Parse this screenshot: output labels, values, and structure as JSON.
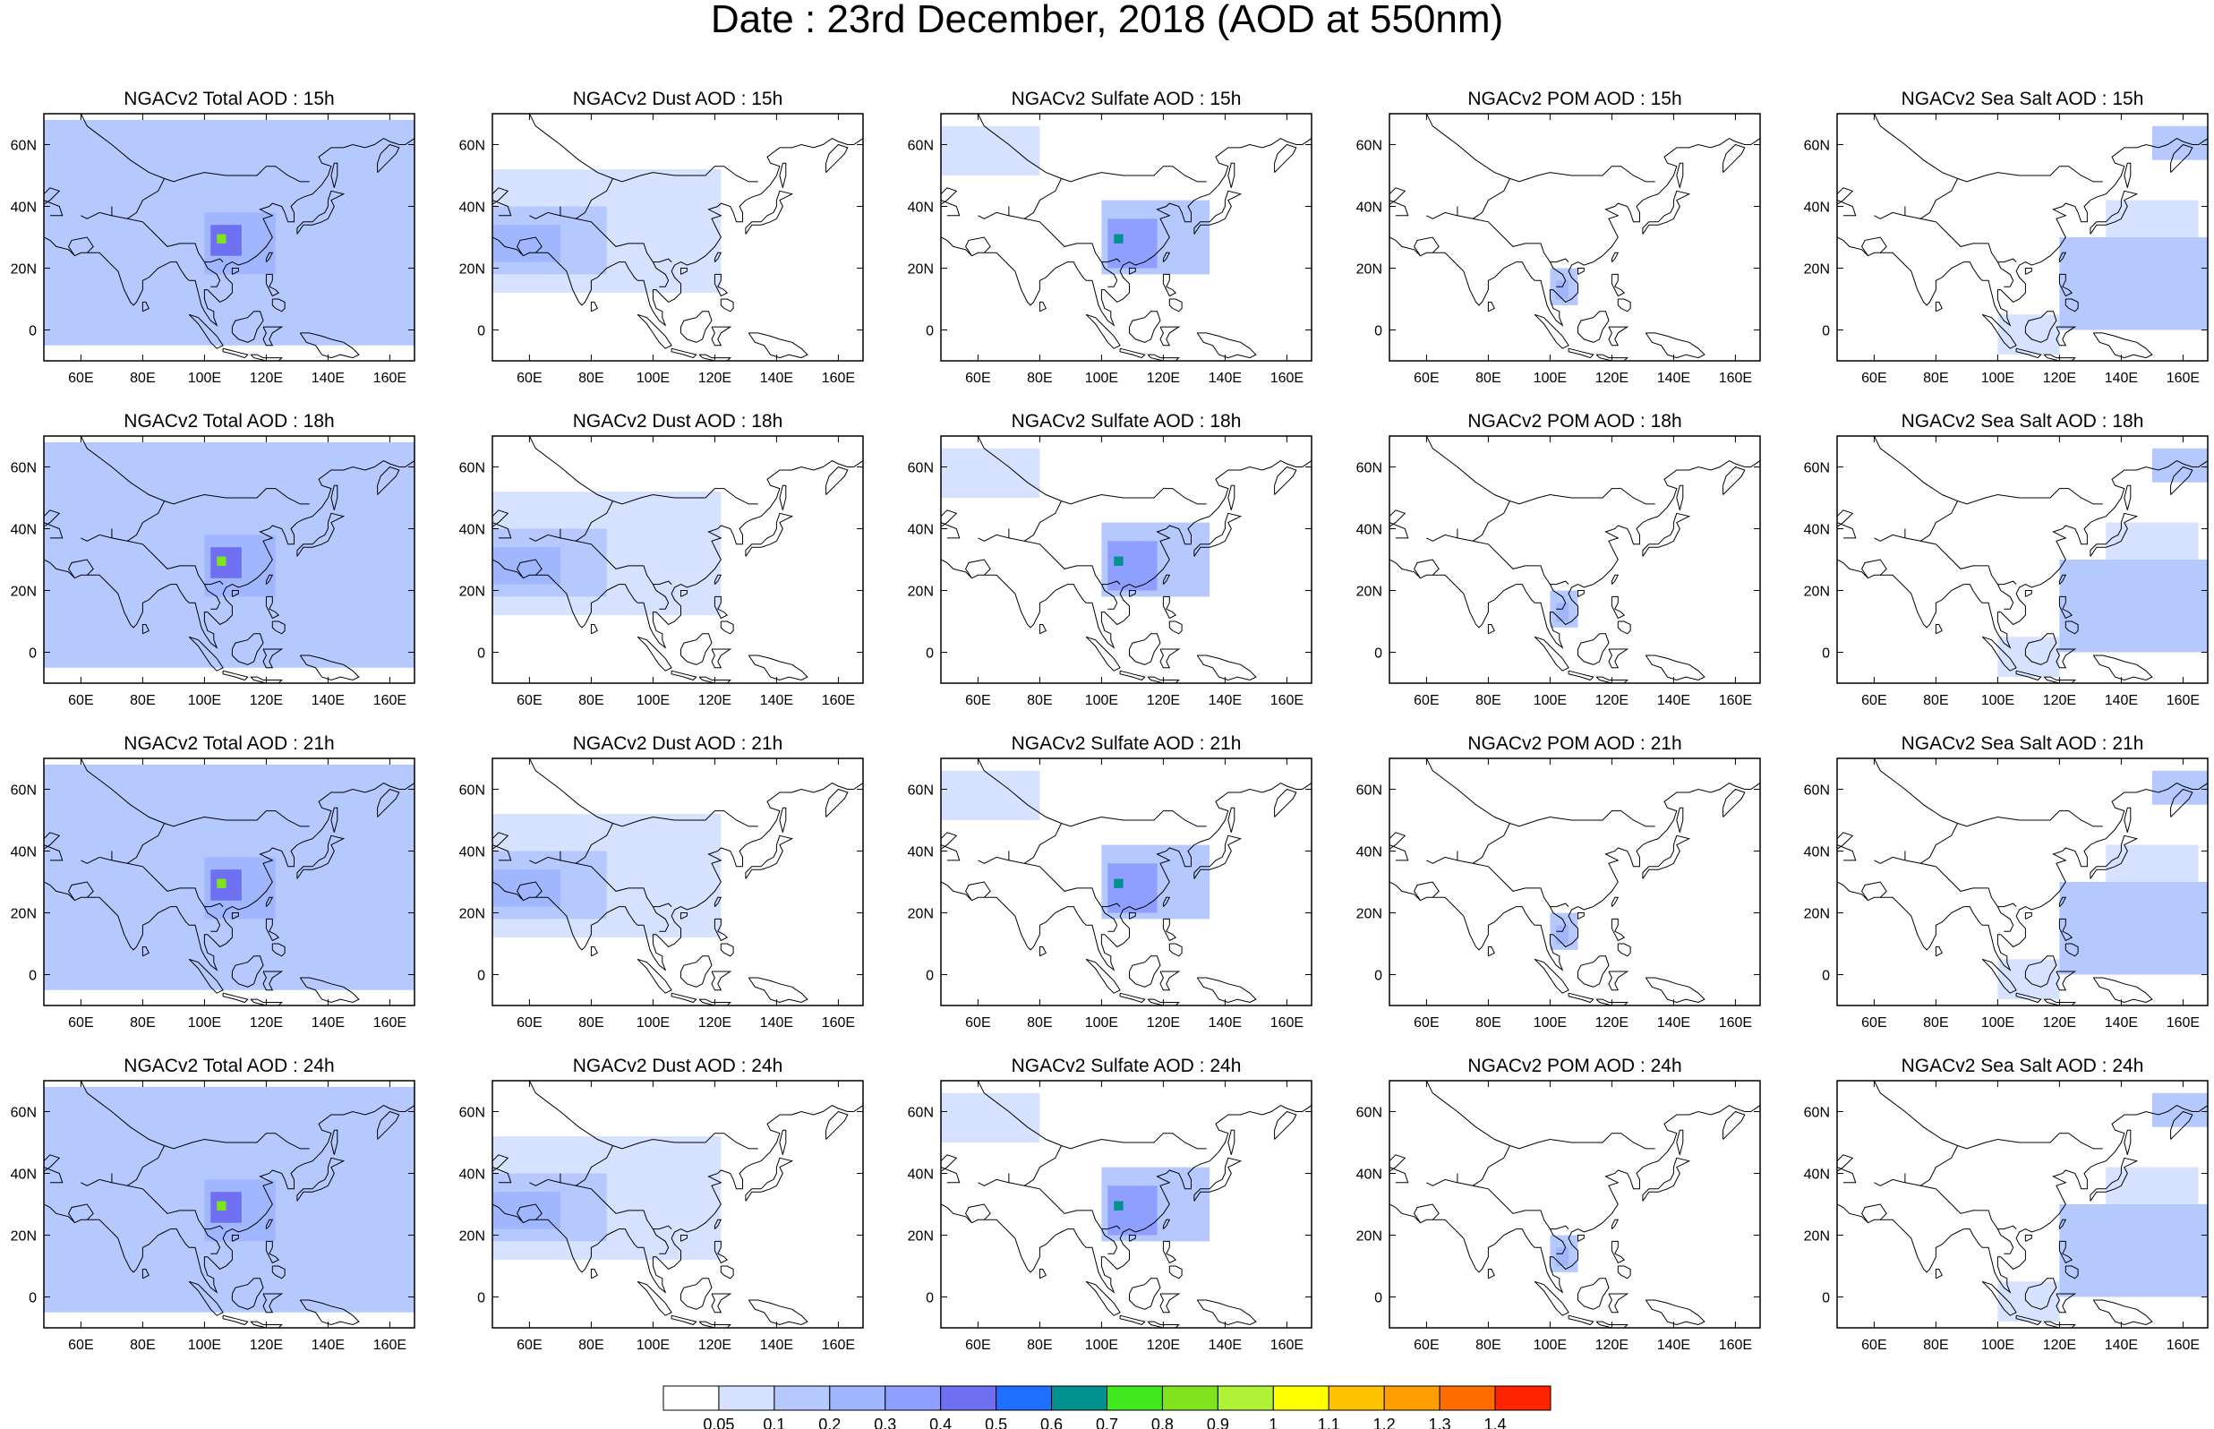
{
  "title": "Date : 23rd December, 2018 (AOD at 550nm)",
  "hours": [
    "15h",
    "18h",
    "21h",
    "24h"
  ],
  "species": [
    {
      "key": "total",
      "prefix": "NGACv2 Total AOD : "
    },
    {
      "key": "dust",
      "prefix": "NGACv2 Dust AOD : "
    },
    {
      "key": "sulfate",
      "prefix": "NGACv2 Sulfate AOD : "
    },
    {
      "key": "pom",
      "prefix": "NGACv2 POM AOD : "
    },
    {
      "key": "seasalt",
      "prefix": "NGACv2 Sea Salt AOD : "
    }
  ],
  "panel_titles": [
    [
      "NGACv2 Total AOD : 15h",
      "NGACv2 Dust AOD : 15h",
      "NGACv2 Sulfate AOD : 15h",
      "NGACv2 POM AOD : 15h",
      "NGACv2 Sea Salt AOD : 15h"
    ],
    [
      "NGACv2 Total AOD : 18h",
      "NGACv2 Dust AOD : 18h",
      "NGACv2 Sulfate AOD : 18h",
      "NGACv2 POM AOD : 18h",
      "NGACv2 Sea Salt AOD : 18h"
    ],
    [
      "NGACv2 Total AOD : 21h",
      "NGACv2 Dust AOD : 21h",
      "NGACv2 Sulfate AOD : 21h",
      "NGACv2 POM AOD : 21h",
      "NGACv2 Sea Salt AOD : 21h"
    ],
    [
      "NGACv2 Total AOD : 24h",
      "NGACv2 Dust AOD : 24h",
      "NGACv2 Sulfate AOD : 24h",
      "NGACv2 POM AOD : 24h",
      "NGACv2 Sea Salt  AOD : 24h"
    ]
  ],
  "map": {
    "lon_range": [
      48,
      168
    ],
    "lat_range": [
      -10,
      70
    ],
    "lon_ticks": [
      60,
      80,
      100,
      120,
      140,
      160
    ],
    "lon_tick_labels": [
      "60E",
      "80E",
      "100E",
      "120E",
      "140E",
      "160E"
    ],
    "lat_ticks": [
      60,
      40,
      20,
      0
    ],
    "lat_tick_labels": [
      "60N",
      "40N",
      "20N",
      "0"
    ],
    "coastline_color": "#000000"
  },
  "colorbar": {
    "labels": [
      "0.05",
      "0.1",
      "0.2",
      "0.3",
      "0.4",
      "0.5",
      "0.6",
      "0.7",
      "0.8",
      "0.9",
      "1",
      "1.1",
      "1.2",
      "1.3",
      "1.4"
    ],
    "colors": [
      "#ffffff",
      "#d6e2ff",
      "#b5c9ff",
      "#a0b6ff",
      "#8e9fff",
      "#6f6ff2",
      "#1e6eff",
      "#03918f",
      "#40e81e",
      "#7fe31e",
      "#b0f235",
      "#ffff00",
      "#ffc200",
      "#ff9e00",
      "#ff6d00",
      "#ff2400"
    ]
  },
  "fields": {
    "total": [
      {
        "lon": [
          48,
          168
        ],
        "lat": [
          -5,
          68
        ],
        "v": 0.12
      },
      {
        "lon": [
          48,
          95
        ],
        "lat": [
          15,
          45
        ],
        "v": 0.15
      },
      {
        "lon": [
          100,
          123
        ],
        "lat": [
          18,
          38
        ],
        "v": 0.25
      },
      {
        "lon": [
          102,
          112
        ],
        "lat": [
          24,
          34
        ],
        "v": 0.45
      },
      {
        "lon": [
          104,
          107
        ],
        "lat": [
          28,
          31
        ],
        "v": 0.85
      },
      {
        "lon": [
          125,
          165
        ],
        "lat": [
          25,
          45
        ],
        "v": 0.15
      }
    ],
    "dust": [
      {
        "lon": [
          48,
          122
        ],
        "lat": [
          12,
          52
        ],
        "v": 0.09
      },
      {
        "lon": [
          48,
          85
        ],
        "lat": [
          18,
          40
        ],
        "v": 0.15
      },
      {
        "lon": [
          48,
          70
        ],
        "lat": [
          22,
          34
        ],
        "v": 0.22
      }
    ],
    "sulfate": [
      {
        "lon": [
          48,
          80
        ],
        "lat": [
          50,
          66
        ],
        "v": 0.09
      },
      {
        "lon": [
          100,
          135
        ],
        "lat": [
          18,
          42
        ],
        "v": 0.12
      },
      {
        "lon": [
          102,
          118
        ],
        "lat": [
          20,
          36
        ],
        "v": 0.3
      },
      {
        "lon": [
          104,
          107
        ],
        "lat": [
          28,
          31
        ],
        "v": 0.6
      }
    ],
    "pom": [
      {
        "lon": [
          100,
          109
        ],
        "lat": [
          8,
          20
        ],
        "v": 0.12
      },
      {
        "lon": [
          102,
          106
        ],
        "lat": [
          10,
          16
        ],
        "v": 0.2
      }
    ],
    "seasalt": [
      {
        "lon": [
          120,
          168
        ],
        "lat": [
          0,
          30
        ],
        "v": 0.1
      },
      {
        "lon": [
          150,
          168
        ],
        "lat": [
          55,
          66
        ],
        "v": 0.1
      },
      {
        "lon": [
          100,
          120
        ],
        "lat": [
          -8,
          5
        ],
        "v": 0.08
      },
      {
        "lon": [
          135,
          165
        ],
        "lat": [
          30,
          42
        ],
        "v": 0.08
      }
    ]
  }
}
